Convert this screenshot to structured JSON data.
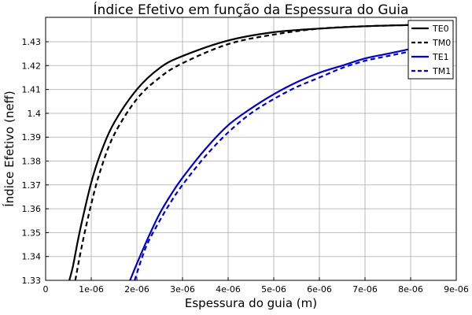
{
  "chart_data": {
    "type": "line",
    "title": "Índice Efetivo em função da Espessura do Guia",
    "xlabel": "Espessura do guia (m)",
    "ylabel": "Índice Efetivo (neff)",
    "xlim": [
      0,
      9e-06
    ],
    "ylim": [
      1.33,
      1.44
    ],
    "x_ticks": [
      "0",
      "1e-06",
      "2e-06",
      "3e-06",
      "4e-06",
      "5e-06",
      "6e-06",
      "7e-06",
      "8e-06",
      "9e-06"
    ],
    "y_ticks": [
      "1.33",
      "1.34",
      "1.35",
      "1.36",
      "1.37",
      "1.38",
      "1.39",
      "1.4",
      "1.41",
      "1.42",
      "1.43"
    ],
    "grid": true,
    "legend_position": "top-right",
    "series": [
      {
        "name": "TE0",
        "color": "#000000",
        "dash": "solid",
        "x": [
          5.2e-07,
          6e-07,
          7e-07,
          8e-07,
          1e-06,
          1.2e-06,
          1.5e-06,
          2e-06,
          2.5e-06,
          3e-06,
          4e-06,
          5e-06,
          6e-06,
          7e-06,
          8e-06,
          8.2e-06
        ],
        "y": [
          1.33,
          1.336,
          1.346,
          1.355,
          1.371,
          1.383,
          1.396,
          1.41,
          1.419,
          1.424,
          1.4305,
          1.434,
          1.4355,
          1.4365,
          1.437,
          1.437
        ]
      },
      {
        "name": "TM0",
        "color": "#000000",
        "dash": "dashed",
        "x": [
          6.5e-07,
          8e-07,
          1e-06,
          1.2e-06,
          1.5e-06,
          2e-06,
          2.5e-06,
          3e-06,
          4e-06,
          5e-06,
          6e-06,
          7e-06,
          8e-06,
          8.2e-06
        ],
        "y": [
          1.33,
          1.345,
          1.362,
          1.376,
          1.391,
          1.406,
          1.415,
          1.421,
          1.429,
          1.433,
          1.4355,
          1.4365,
          1.437,
          1.437
        ]
      },
      {
        "name": "TE1",
        "color": "#0000cc",
        "dash": "solid",
        "x": [
          1.85e-06,
          2e-06,
          2.25e-06,
          2.5e-06,
          2.75e-06,
          3e-06,
          3.5e-06,
          4e-06,
          4.5e-06,
          5e-06,
          5.5e-06,
          6e-06,
          6.5e-06,
          7e-06,
          7.5e-06,
          8e-06,
          8.2e-06
        ],
        "y": [
          1.33,
          1.337,
          1.348,
          1.358,
          1.366,
          1.373,
          1.385,
          1.395,
          1.402,
          1.408,
          1.413,
          1.417,
          1.42,
          1.423,
          1.425,
          1.427,
          1.428
        ]
      },
      {
        "name": "TM1",
        "color": "#0000cc",
        "dash": "dashed",
        "x": [
          1.95e-06,
          2.2e-06,
          2.5e-06,
          2.75e-06,
          3e-06,
          3.5e-06,
          4e-06,
          4.5e-06,
          5e-06,
          5.5e-06,
          6e-06,
          6.5e-06,
          7e-06,
          7.5e-06,
          8e-06,
          8.2e-06
        ],
        "y": [
          1.33,
          1.344,
          1.355,
          1.363,
          1.37,
          1.382,
          1.392,
          1.4,
          1.406,
          1.411,
          1.415,
          1.419,
          1.422,
          1.424,
          1.426,
          1.427
        ]
      }
    ]
  }
}
